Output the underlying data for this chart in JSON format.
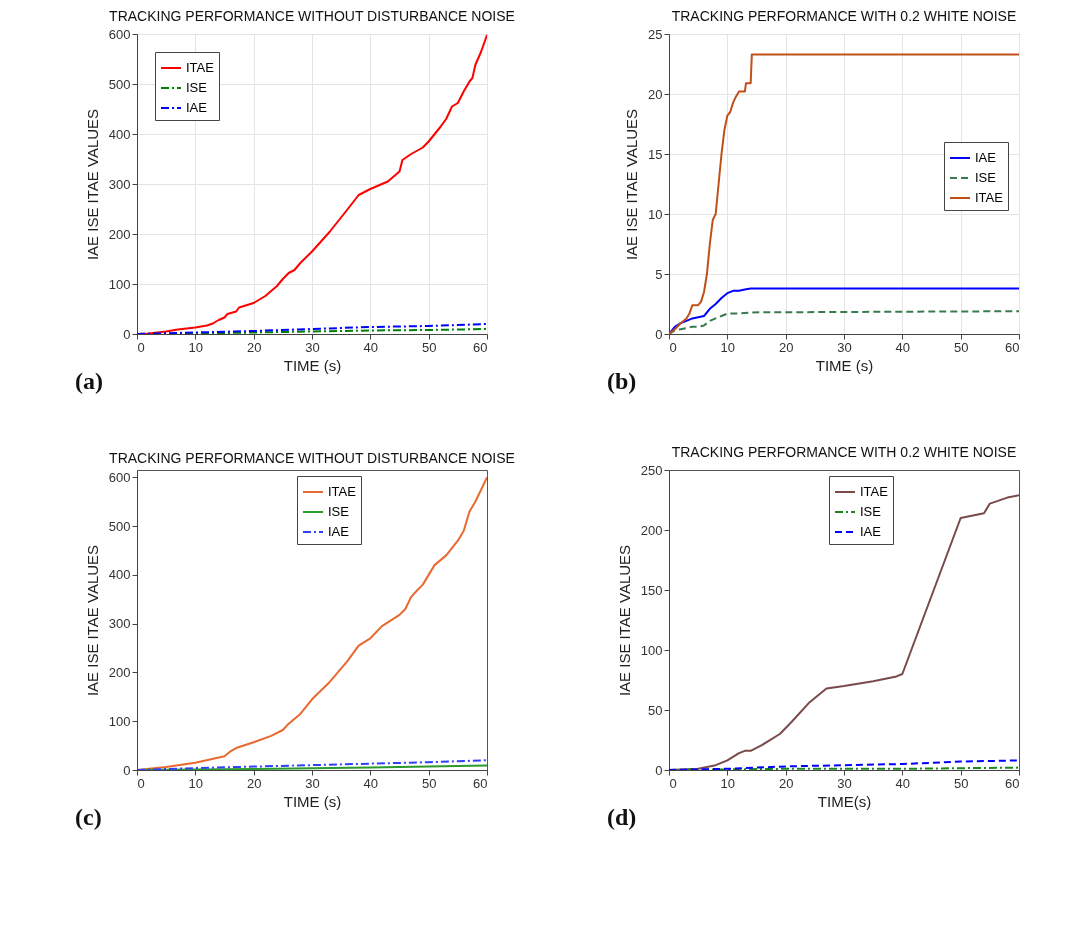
{
  "chart_data": [
    {
      "type": "line",
      "title": "TRACKING PERFORMANCE WITHOUT DISTURBANCE NOISE",
      "xlabel": "TIME (s)",
      "ylabel": "IAE   ISE   ITAE VALUES",
      "annotations": [
        "(a)"
      ],
      "xlim": [
        0,
        60
      ],
      "xticks": [
        0,
        10,
        20,
        30,
        40,
        50,
        60
      ],
      "ylim": [
        0,
        600
      ],
      "yticks": [
        0,
        100,
        200,
        300,
        400,
        500,
        600
      ],
      "grid": true,
      "legend": "top left",
      "series": [
        {
          "name": "ITAE",
          "color": "#ff0000",
          "line_style": "solid",
          "x": [
            0,
            2,
            5,
            7,
            10,
            12,
            13,
            14,
            15,
            15.5,
            17,
            17.5,
            20,
            22,
            24,
            25,
            26,
            27,
            28,
            30,
            33,
            36,
            38,
            40,
            43,
            45,
            45.5,
            47,
            49,
            50,
            52,
            53,
            54,
            55,
            56,
            57,
            57.5,
            58,
            59,
            60
          ],
          "values": [
            0,
            1,
            5,
            9,
            13,
            17,
            21,
            28,
            33,
            40,
            45,
            53,
            62,
            76,
            96,
            110,
            122,
            128,
            142,
            165,
            204,
            248,
            278,
            290,
            305,
            325,
            348,
            360,
            373,
            385,
            414,
            430,
            455,
            462,
            485,
            505,
            512,
            538,
            565,
            598
          ]
        },
        {
          "name": "ISE",
          "color": "#008000",
          "line_style": "dashdot",
          "x": [
            0,
            10,
            20,
            30,
            40,
            50,
            60
          ],
          "values": [
            0,
            1,
            3,
            5,
            7,
            8,
            10
          ]
        },
        {
          "name": "IAE",
          "color": "#0000ff",
          "line_style": "dashdot",
          "x": [
            0,
            10,
            20,
            30,
            40,
            50,
            60
          ],
          "values": [
            0,
            3,
            6,
            10,
            14,
            16,
            20
          ]
        }
      ]
    },
    {
      "type": "line",
      "title": "TRACKING PERFORMANCE WITH 0.2 WHITE NOISE",
      "xlabel": "TIME (s)",
      "ylabel": "IAE   ISE   ITAE VALUES",
      "annotations": [
        "(b)"
      ],
      "xlim": [
        0,
        60
      ],
      "xticks": [
        0,
        10,
        20,
        30,
        40,
        50,
        60
      ],
      "ylim": [
        0,
        25
      ],
      "yticks": [
        0,
        5,
        10,
        15,
        20,
        25
      ],
      "grid": true,
      "legend": "right",
      "series": [
        {
          "name": "IAE",
          "color": "#0000ff",
          "line_style": "solid",
          "x": [
            0,
            1,
            2,
            3,
            4,
            5,
            6,
            7,
            8,
            9,
            10,
            11,
            12,
            13,
            14,
            60
          ],
          "values": [
            0,
            0.6,
            0.9,
            1.1,
            1.3,
            1.4,
            1.5,
            2.1,
            2.5,
            3,
            3.4,
            3.6,
            3.6,
            3.7,
            3.8,
            3.8
          ]
        },
        {
          "name": "ISE",
          "color": "#3a7a50",
          "line_style": "dashed",
          "x": [
            0,
            1,
            2,
            3,
            4,
            5,
            6,
            7,
            8,
            9,
            10,
            12,
            14,
            60
          ],
          "values": [
            0,
            0.3,
            0.4,
            0.5,
            0.6,
            0.6,
            0.7,
            1.1,
            1.3,
            1.5,
            1.7,
            1.7,
            1.8,
            1.9
          ]
        },
        {
          "name": "ITAE",
          "color": "#c0501a",
          "line_style": "solid",
          "x": [
            0,
            1,
            2,
            3,
            3.5,
            4,
            5,
            5.5,
            6,
            6.5,
            7,
            7.5,
            8,
            8.5,
            9,
            9.5,
            10,
            10.5,
            11,
            11.5,
            12,
            13,
            13.2,
            14,
            14.2,
            60
          ],
          "values": [
            0,
            0.4,
            0.9,
            1.3,
            1.7,
            2.4,
            2.4,
            2.7,
            3.5,
            5,
            7.5,
            9.5,
            10,
            12.5,
            15,
            17,
            18.2,
            18.5,
            19.3,
            19.8,
            20.2,
            20.2,
            20.9,
            20.9,
            23.3,
            23.3
          ]
        }
      ]
    },
    {
      "type": "line",
      "title": "TRACKING PERFORMANCE WITHOUT DISTURBANCE NOISE",
      "xlabel": "TIME (s)",
      "ylabel": "IAE   ISE   ITAE VALUES",
      "annotations": [
        "(c)"
      ],
      "xlim": [
        0,
        60
      ],
      "xticks": [
        0,
        10,
        20,
        30,
        40,
        50,
        60
      ],
      "ylim": [
        0,
        615
      ],
      "yticks": [
        0,
        100,
        200,
        300,
        400,
        500,
        600
      ],
      "legend": "top right",
      "series": [
        {
          "name": "ITAE",
          "color": "#e8692f",
          "line_style": "solid",
          "x": [
            0,
            5,
            10,
            15,
            16,
            17,
            20,
            23,
            25,
            26,
            28,
            30,
            33,
            36,
            38,
            40,
            42,
            45,
            46,
            47,
            48,
            49,
            50,
            51,
            53,
            55,
            56,
            57,
            58,
            60
          ],
          "values": [
            0,
            6,
            15,
            28,
            38,
            45,
            57,
            70,
            82,
            95,
            115,
            145,
            180,
            222,
            255,
            270,
            295,
            318,
            330,
            355,
            368,
            380,
            400,
            420,
            440,
            470,
            490,
            530,
            550,
            600
          ]
        },
        {
          "name": "ISE",
          "color": "#2a9a2a",
          "line_style": "solid",
          "x": [
            0,
            20,
            40,
            60
          ],
          "values": [
            0,
            2,
            5,
            9
          ]
        },
        {
          "name": "IAE",
          "color": "#3040ff",
          "line_style": "dashdot",
          "x": [
            0,
            10,
            20,
            30,
            40,
            50,
            60
          ],
          "values": [
            0,
            4,
            7,
            10,
            13,
            16,
            20
          ]
        }
      ]
    },
    {
      "type": "line",
      "title": "TRACKING PERFORMANCE WITH 0.2 WHITE NOISE",
      "xlabel": "TIME(s)",
      "ylabel": "IAE   ISE   ITAE VALUES",
      "annotations": [
        "(d)"
      ],
      "xlim": [
        0,
        60
      ],
      "xticks": [
        0,
        10,
        20,
        30,
        40,
        50,
        60
      ],
      "ylim": [
        0,
        250
      ],
      "yticks": [
        0,
        50,
        100,
        150,
        200,
        250
      ],
      "legend": "top right",
      "series": [
        {
          "name": "ITAE",
          "color": "#7a4a4a",
          "line_style": "solid",
          "x": [
            0,
            5,
            8,
            10,
            12,
            13,
            14,
            16,
            19,
            21,
            24,
            27,
            30,
            35,
            39,
            40,
            45,
            50,
            54,
            55,
            58,
            60
          ],
          "values": [
            0,
            1,
            4,
            8,
            14,
            16,
            16,
            21,
            30,
            40,
            56,
            68,
            70,
            74,
            78,
            80,
            145,
            210,
            214,
            222,
            227,
            229
          ]
        },
        {
          "name": "ISE",
          "color": "#1a8a1a",
          "line_style": "dashdot",
          "x": [
            0,
            20,
            40,
            60
          ],
          "values": [
            0,
            1,
            1,
            2
          ]
        },
        {
          "name": "IAE",
          "color": "#0000ff",
          "line_style": "dashed",
          "x": [
            0,
            10,
            20,
            30,
            40,
            50,
            60
          ],
          "values": [
            0,
            1,
            3,
            4,
            5,
            7,
            8
          ]
        }
      ]
    }
  ]
}
